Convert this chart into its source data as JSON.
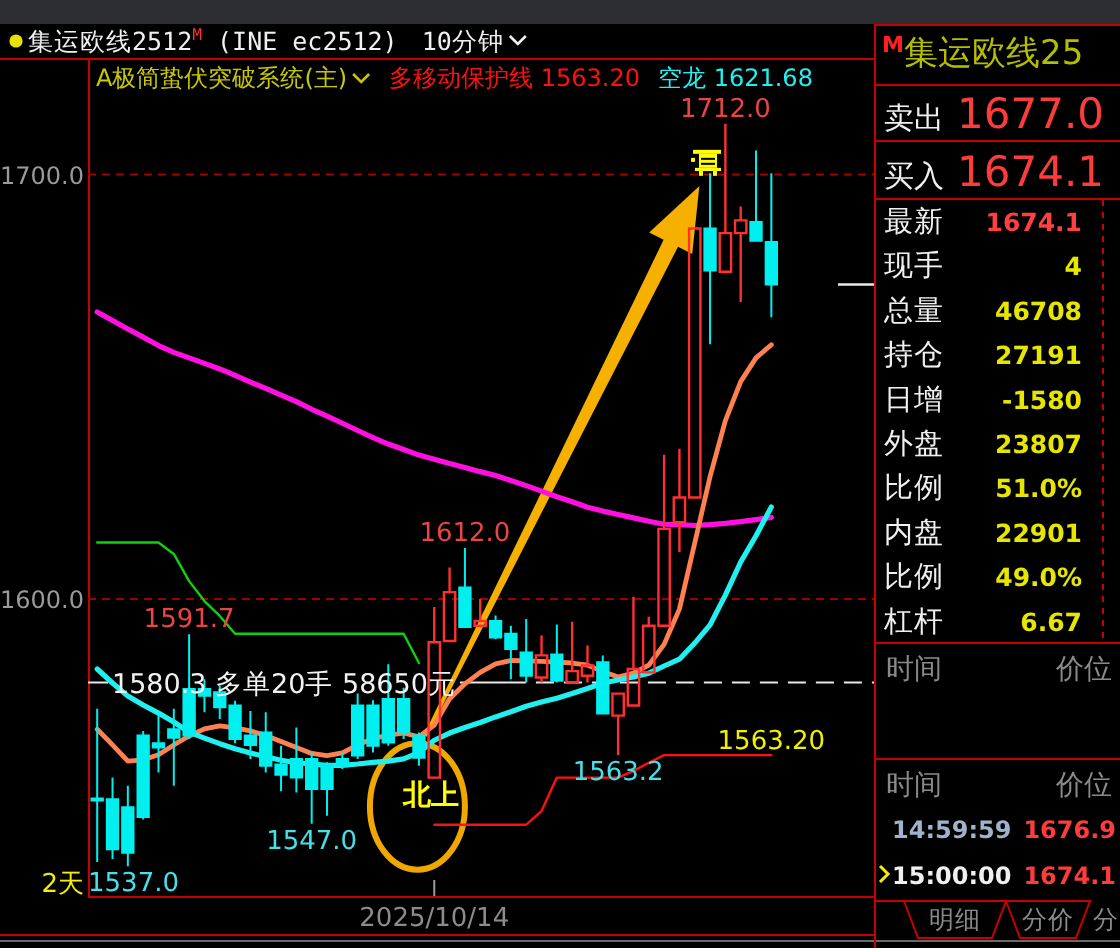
{
  "chart_data": [
    {
      "type": "candlestick",
      "title": "集运欧线2512$^{M}$ (INE ec2512)",
      "subtitle": "A极简蛰伏突破系统(主)",
      "categories": [
        null,
        null,
        null,
        null,
        null,
        null,
        null,
        null,
        null,
        null,
        null,
        null,
        null,
        null,
        null,
        null,
        null,
        null,
        null,
        null,
        null,
        null,
        "2025/10/14",
        null,
        null,
        null,
        null,
        null,
        null,
        null,
        null,
        null,
        null,
        null,
        null,
        null,
        null,
        null,
        null,
        null,
        null,
        null,
        null,
        null,
        null
      ],
      "ohlc": [
        [
          1553.0,
          1574.1,
          1538.0,
          1552.5
        ],
        [
          1552.8,
          1557.9,
          1538.7,
          1541.0
        ],
        [
          1550.9,
          1556.0,
          1537.0,
          1540.2
        ],
        [
          1567.8,
          1568.9,
          1548.0,
          1548.6
        ],
        [
          1566.0,
          1572.8,
          1559.1,
          1565.0
        ],
        [
          1569.3,
          1574.1,
          1556.0,
          1567.3
        ],
        [
          1578.8,
          1591.7,
          1567.0,
          1567.8
        ],
        [
          1578.8,
          1581.1,
          1573.3,
          1577.2
        ],
        [
          1578.0,
          1579.6,
          1571.7,
          1574.5
        ],
        [
          1574.9,
          1576.0,
          1566.0,
          1567.0
        ],
        [
          1567.8,
          1573.6,
          1562.3,
          1565.6
        ],
        [
          1568.5,
          1573.3,
          1559.1,
          1560.7
        ],
        [
          1561.0,
          1565.4,
          1554.7,
          1558.6
        ],
        [
          1562.3,
          1569.7,
          1554.4,
          1557.9
        ],
        [
          1562.3,
          1563.8,
          1547.0,
          1555.2
        ],
        [
          1561.0,
          1561.5,
          1548.9,
          1555.2
        ],
        [
          1562.3,
          1563.8,
          1559.9,
          1560.7
        ],
        [
          1574.9,
          1577.7,
          1562.3,
          1563.1
        ],
        [
          1574.9,
          1576.1,
          1563.8,
          1565.4
        ],
        [
          1576.4,
          1584.6,
          1565.4,
          1566.2
        ],
        [
          1576.4,
          1579.1,
          1567.0,
          1568.6
        ],
        [
          1567.8,
          1568.5,
          1560.7,
          1562.6
        ],
        [
          1557.9,
          1598.1,
          1557.9,
          1589.8
        ],
        [
          1590.1,
          1607.4,
          1590.1,
          1601.6
        ],
        [
          1602.7,
          1612.0,
          1593.4,
          1593.4
        ],
        [
          1593.7,
          1600.0,
          1593.5,
          1594.8
        ],
        [
          1594.8,
          1596.1,
          1590.5,
          1590.9
        ],
        [
          1591.8,
          1593.7,
          1581.1,
          1588.2
        ],
        [
          1587.4,
          1595.3,
          1580.3,
          1581.9
        ],
        [
          1581.5,
          1591.4,
          1580.3,
          1586.7
        ],
        [
          1586.9,
          1594.0,
          1580.3,
          1580.7
        ],
        [
          1580.3,
          1594.6,
          1580.3,
          1583.0
        ],
        [
          1581.9,
          1589.0,
          1580.3,
          1584.3
        ],
        [
          1585.1,
          1586.7,
          1573.0,
          1573.0
        ],
        [
          1572.5,
          1577.7,
          1563.2,
          1577.7
        ],
        [
          1574.9,
          1600.5,
          1574.9,
          1583.5
        ],
        [
          1582.7,
          1595.8,
          1582.7,
          1593.7
        ],
        [
          1593.7,
          1634.0,
          1593.7,
          1616.5
        ],
        [
          1618.1,
          1635.4,
          1611.0,
          1623.9
        ],
        [
          1623.9,
          1687.3,
          1623.9,
          1687.3
        ],
        [
          1687.3,
          1700.3,
          1660.0,
          1677.4
        ],
        [
          1677.1,
          1712.0,
          1676.7,
          1686.2
        ],
        [
          1686.2,
          1692.5,
          1670.0,
          1689.2
        ],
        [
          1688.8,
          1705.7,
          1684.4,
          1684.4
        ],
        [
          1684.1,
          1700.3,
          1666.4,
          1674.1
        ]
      ],
      "colors": [
        "#00f0f0",
        "#00f0f0",
        "#00f0f0",
        "#00f0f0",
        "#00f0f0",
        "#00f0f0",
        "#00f0f0",
        "#00f0f0",
        "#00f0f0",
        "#00f0f0",
        "#00f0f0",
        "#00f0f0",
        "#00f0f0",
        "#00f0f0",
        "#00f0f0",
        "#00f0f0",
        "#00f0f0",
        "#00f0f0",
        "#00f0f0",
        "#00f0f0",
        "#00f0f0",
        "#00f0f0",
        "#ff3030",
        "#ff3030",
        "#00f0f0",
        "#ff3030",
        "#00f0f0",
        "#00f0f0",
        "#00f0f0",
        "#ff3030",
        "#00f0f0",
        "#ff3030",
        "#ff3030",
        "#00f0f0",
        "#ff3030",
        "#ff3030",
        "#ff3030",
        "#ff3030",
        "#ff3030",
        "#ff3030",
        "#00f0f0",
        "#ff3030",
        "#ff3030",
        "#00f0f0",
        "#00f0f0"
      ],
      "ylim": [
        1530,
        1727
      ],
      "yticks": [
        {
          "value": 1600,
          "label": "1600.0"
        },
        {
          "value": 1700,
          "label": "1700.0"
        }
      ],
      "grid": "y",
      "legend": "top left",
      "series": [
        {
          "type": "line",
          "color": "#ff10e0",
          "values": [
            1667.6,
            1665.6,
            1663.6,
            1661.7,
            1659.7,
            1658.1,
            1656.8,
            1655.5,
            1654.2,
            1652.7,
            1651.1,
            1649.6,
            1648.0,
            1646.5,
            1644.7,
            1643.1,
            1641.4,
            1639.7,
            1638.0,
            1636.5,
            1635.2,
            1633.9,
            1632.9,
            1631.9,
            1631.0,
            1630.0,
            1629.1,
            1627.9,
            1626.7,
            1625.4,
            1624.1,
            1622.9,
            1621.6,
            1620.7,
            1619.9,
            1619.1,
            1618.3,
            1617.6,
            1617.5,
            1617.3,
            1617.5,
            1617.8,
            1618.2,
            1618.7,
            1619.2
          ]
        },
        {
          "type": "line",
          "color": "#ff8050",
          "values": [
            1569.3,
            1565.6,
            1561.8,
            1562.1,
            1563.3,
            1565.6,
            1567.7,
            1569.4,
            1570.1,
            1569.6,
            1568.9,
            1567.8,
            1566.4,
            1565.0,
            1563.6,
            1563.1,
            1563.7,
            1565.6,
            1567.1,
            1567.9,
            1568.4,
            1567.5,
            1570.3,
            1576.5,
            1580.0,
            1582.7,
            1584.7,
            1585.5,
            1585.4,
            1585.3,
            1585.1,
            1584.9,
            1584.4,
            1582.9,
            1581.6,
            1582.5,
            1584.4,
            1589.3,
            1597.6,
            1613.2,
            1628.8,
            1642.0,
            1651.2,
            1656.8,
            1659.9
          ]
        },
        {
          "type": "line",
          "color": "#10d010",
          "values": [
            1613.3,
            1613.3,
            1613.3,
            1613.3,
            1613.3,
            1610.6,
            1604.2,
            1599.5,
            1596.0,
            1591.8,
            1591.8,
            1591.8,
            1591.8,
            1591.8,
            1591.8,
            1591.8,
            1591.8,
            1591.8,
            1591.8,
            1591.8,
            1591.8,
            1584.9,
            null,
            null,
            null,
            null,
            null,
            null,
            null,
            null,
            null,
            null,
            null,
            null,
            null,
            null,
            null,
            null,
            null,
            null,
            null,
            null,
            null,
            null,
            null
          ]
        },
        {
          "type": "line",
          "name": "多移动保护线 1563.20",
          "color": "#ff1010",
          "values": [
            null,
            null,
            null,
            null,
            null,
            null,
            null,
            null,
            null,
            null,
            null,
            null,
            null,
            null,
            null,
            null,
            null,
            null,
            null,
            null,
            null,
            null,
            1546.8,
            1546.8,
            1546.8,
            1546.8,
            1546.8,
            1546.8,
            1546.8,
            1550.0,
            1557.9,
            1557.9,
            1557.9,
            1557.9,
            1557.9,
            1559.5,
            1561.4,
            1563.2,
            1563.2,
            1563.2,
            1563.2,
            1563.2,
            1563.2,
            1563.2,
            1563.2
          ],
          "value_labels": [
            null,
            null,
            null,
            null,
            null,
            null,
            null,
            null,
            null,
            null,
            null,
            null,
            null,
            null,
            null,
            null,
            null,
            null,
            null,
            null,
            null,
            null,
            null,
            null,
            null,
            null,
            null,
            null,
            null,
            null,
            null,
            null,
            null,
            null,
            null,
            null,
            null,
            null,
            null,
            null,
            null,
            null,
            null,
            null,
            "1563.20"
          ]
        },
        {
          "type": "line",
          "name": "空龙 1621.68",
          "color": "#20f0f0",
          "values": [
            1583.5,
            1580.2,
            1577.1,
            1575.0,
            1573.1,
            1571.0,
            1568.6,
            1567.2,
            1565.9,
            1564.7,
            1563.7,
            1562.8,
            1562.0,
            1561.4,
            1561.1,
            1560.8,
            1560.8,
            1561.1,
            1561.5,
            1561.8,
            1562.3,
            1563.8,
            1566.7,
            1568.4,
            1569.7,
            1570.9,
            1572.2,
            1573.4,
            1574.7,
            1575.7,
            1576.6,
            1577.7,
            1578.9,
            1580.2,
            1580.9,
            1581.6,
            1582.5,
            1584.2,
            1585.8,
            1589.6,
            1593.9,
            1600.9,
            1608.7,
            1614.9,
            1621.68
          ]
        }
      ],
      "ref_lines": [
        {
          "axis": "y",
          "value": 1580.3,
          "label": "1580.3 多单20手 58650元",
          "color": "#e8e8e8",
          "line_style": "dashed"
        }
      ],
      "annotations": [
        {
          "text": "1712.0",
          "y": 1712.0
        },
        {
          "text": "1612.0",
          "y": 1612.0
        },
        {
          "text": "1591.7",
          "y": 1591.7
        },
        {
          "text": "1563.2",
          "y": 1563.2
        },
        {
          "text": "1547.0",
          "y": 1547.0
        },
        {
          "text": "1537.0",
          "y": 1537.0
        },
        "北上",
        "2天",
        "10分钟"
      ]
    },
    {
      "type": "other",
      "title": "$^{M}$集运欧线25",
      "annotations": [
        "卖出",
        "1677.0",
        "买入",
        "1674.1",
        "最新",
        "1674.1",
        "现手",
        "4",
        "总量",
        "46708",
        "持仓",
        "27191",
        "日增",
        "-1580",
        "外盘",
        "23807",
        "比例",
        "51.0%",
        "内盘",
        "22901",
        "比例",
        "49.0%",
        "杠杆",
        "6.67",
        "时间",
        "价位",
        "时间",
        "价位",
        "14:59:59",
        "1676.9",
        "15:00:00",
        "1674.1",
        "明细",
        "分价",
        "分"
      ]
    }
  ]
}
